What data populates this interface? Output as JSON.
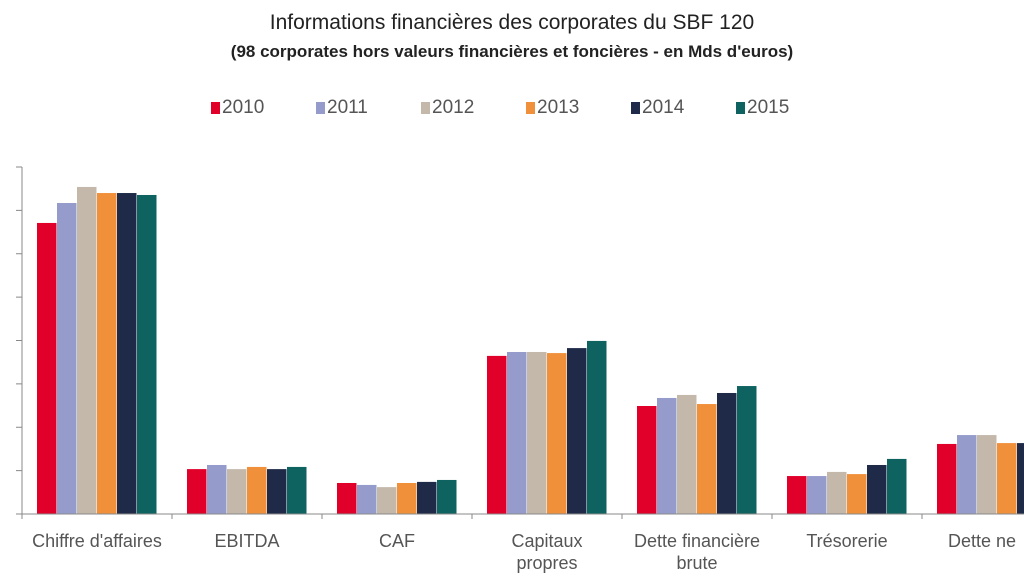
{
  "chart_data": {
    "type": "bar",
    "title": "Informations financières des corporates du SBF 120",
    "subtitle": "(98 corporates hors valeurs financières et foncières - en Mds d'euros)",
    "xlabel": "",
    "ylabel": "",
    "ylim": [
      0,
      1600
    ],
    "ytick_step": 200,
    "ytick_labels_visible": false,
    "grid": false,
    "legend_position": "top-center",
    "categories": [
      [
        "Chiffre d'affaires"
      ],
      [
        "EBITDA"
      ],
      [
        "CAF"
      ],
      [
        "Capitaux",
        "propres"
      ],
      [
        "Dette financière",
        "brute"
      ],
      [
        "Trésorerie"
      ],
      [
        "Dette ne"
      ]
    ],
    "series": [
      {
        "name": "2010",
        "color": "#e0002a",
        "values": [
          1342,
          207,
          143,
          729,
          498,
          175,
          323
        ]
      },
      {
        "name": "2011",
        "color": "#959ccb",
        "values": [
          1434,
          226,
          134,
          747,
          535,
          175,
          364
        ]
      },
      {
        "name": "2012",
        "color": "#c4b8ab",
        "values": [
          1508,
          207,
          124,
          747,
          549,
          194,
          364
        ]
      },
      {
        "name": "2013",
        "color": "#f0903a",
        "values": [
          1480,
          217,
          143,
          742,
          507,
          184,
          327
        ]
      },
      {
        "name": "2014",
        "color": "#1f2a48",
        "values": [
          1480,
          207,
          148,
          765,
          558,
          226,
          327
        ]
      },
      {
        "name": "2015",
        "color": "#0e6360",
        "values": [
          1471,
          217,
          157,
          798,
          590,
          254,
          null
        ]
      }
    ]
  }
}
